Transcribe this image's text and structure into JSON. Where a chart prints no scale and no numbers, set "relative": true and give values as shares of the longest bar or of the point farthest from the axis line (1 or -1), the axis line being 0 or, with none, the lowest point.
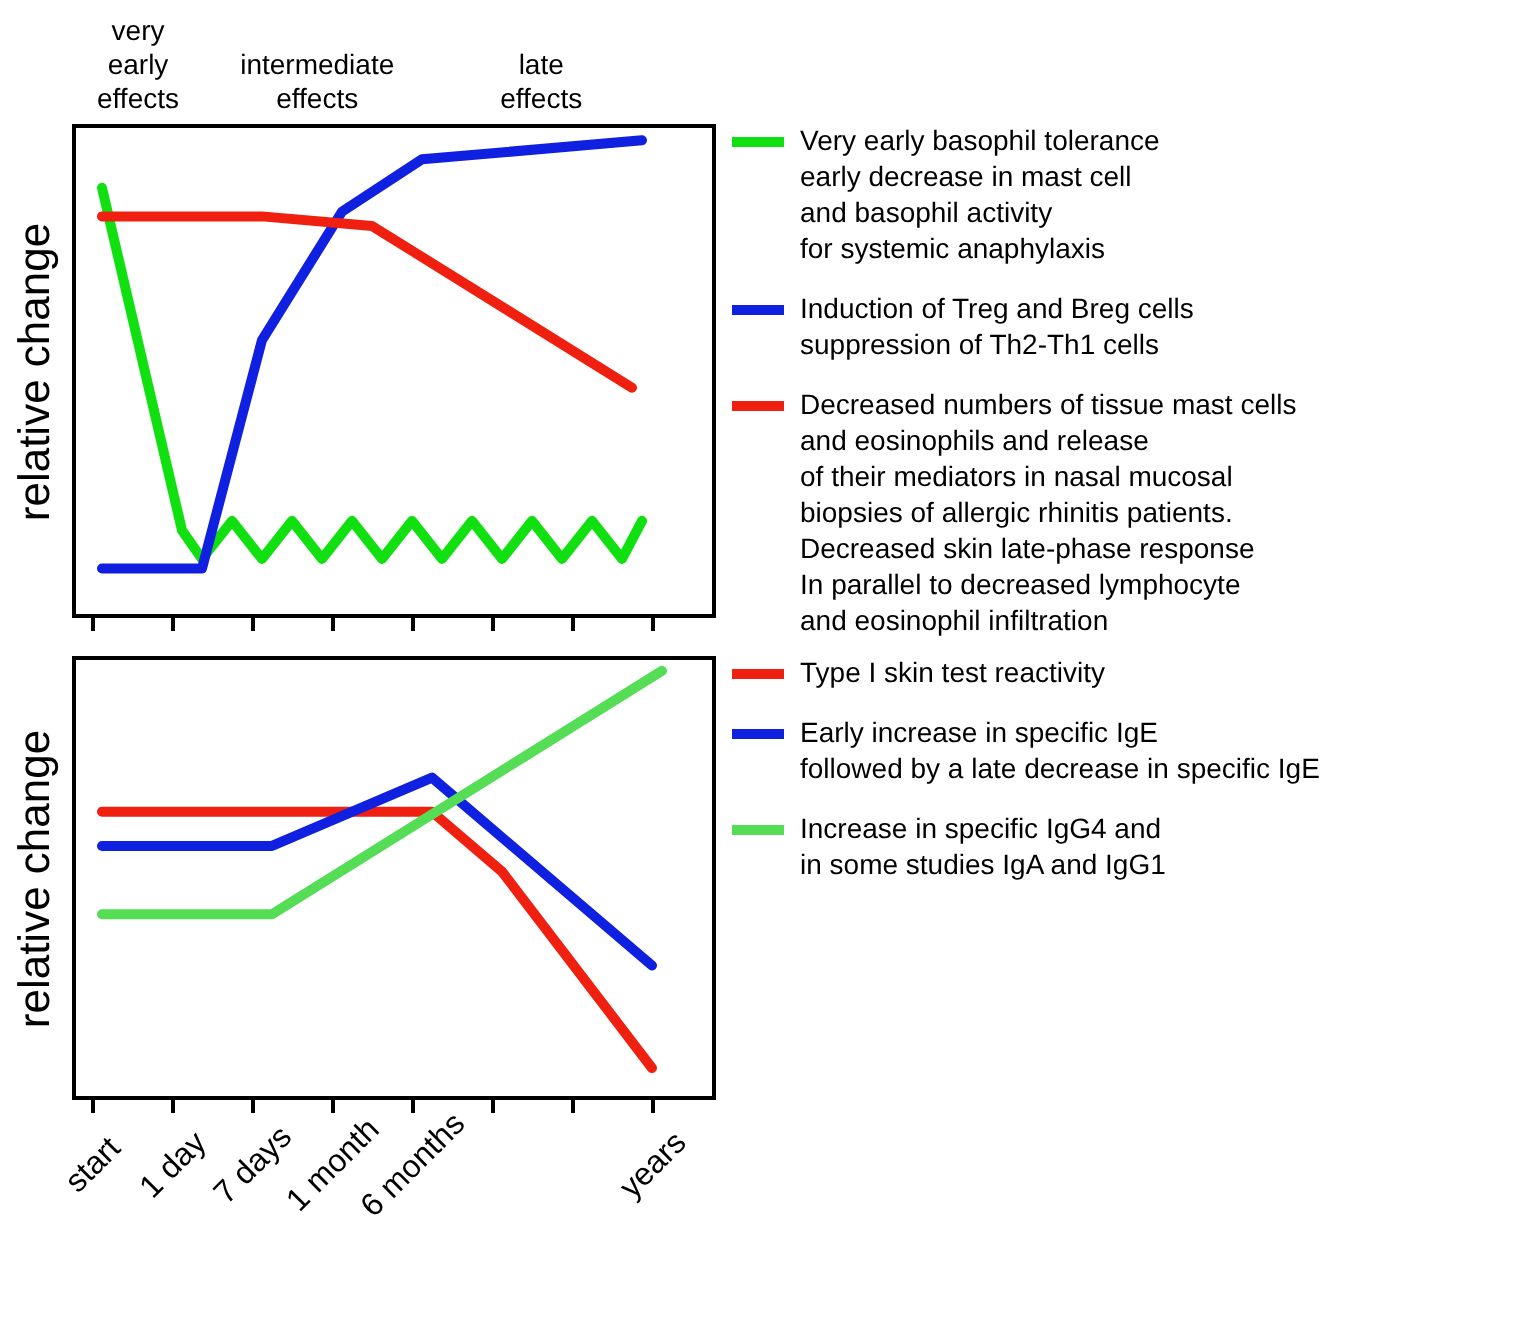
{
  "chart_data": [
    {
      "type": "line",
      "relative": true,
      "ylabel": "relative change",
      "legend": "right",
      "grid": false,
      "marker": "none",
      "line_style": "solid",
      "tick_labels": false,
      "categories": [
        null,
        null,
        null,
        null,
        null,
        null,
        null,
        null,
        null,
        null,
        null,
        null,
        null,
        null,
        null,
        null,
        null,
        null,
        null,
        null,
        null,
        null,
        null,
        null,
        null,
        null,
        null,
        null,
        null,
        null,
        null,
        null,
        null,
        null,
        null,
        null,
        null,
        null,
        null,
        null,
        null,
        null,
        null,
        null,
        null,
        null,
        null,
        null,
        null,
        null,
        null,
        null,
        null,
        null,
        null,
        null,
        null,
        null
      ],
      "annotations": [
        "very\nearly\neffects",
        "intermediate\neffects",
        "late\neffects"
      ],
      "series": [
        {
          "name": "Very early basophil tolerance\nearly decrease in mast cell\nand basophil activity\nfor systemic anaphylaxis",
          "color": "#10e010",
          "values": [
            null,
            0.9,
            null,
            null,
            null,
            null,
            null,
            null,
            null,
            0.18,
            null,
            0.12,
            null,
            null,
            0.2,
            null,
            null,
            0.12,
            null,
            null,
            0.2,
            null,
            null,
            0.12,
            null,
            null,
            0.2,
            null,
            null,
            0.12,
            null,
            null,
            0.2,
            null,
            null,
            0.12,
            null,
            null,
            0.2,
            null,
            null,
            0.12,
            null,
            null,
            0.2,
            null,
            null,
            0.12,
            null,
            null,
            0.2,
            null,
            null,
            0.12,
            null,
            0.2,
            null,
            null
          ]
        },
        {
          "name": "Induction of Treg  and Breg cells\nsuppression of Th2-Th1 cells",
          "color": "#1020e0",
          "values": [
            null,
            0.1,
            null,
            null,
            null,
            null,
            null,
            null,
            null,
            null,
            null,
            0.1,
            null,
            null,
            null,
            null,
            null,
            0.58,
            null,
            null,
            null,
            null,
            null,
            null,
            null,
            0.85,
            null,
            null,
            null,
            null,
            null,
            null,
            null,
            0.96,
            null,
            null,
            null,
            null,
            null,
            null,
            null,
            null,
            null,
            null,
            null,
            null,
            null,
            null,
            null,
            null,
            null,
            null,
            null,
            null,
            null,
            1,
            null,
            null
          ]
        },
        {
          "name": "Decreased numbers of tissue mast cells\nand eosinophils and release\nof their mediators in nasal mucosal\nbiopsies of allergic rhinitis patients.\nDecreased skin late-phase response\nIn parallel to decreased lymphocyte\nand eosinophil infiltration",
          "color": "#f02010",
          "values": [
            null,
            0.84,
            null,
            null,
            null,
            null,
            null,
            null,
            null,
            null,
            null,
            null,
            null,
            null,
            null,
            null,
            null,
            0.84,
            null,
            null,
            null,
            null,
            null,
            null,
            null,
            null,
            null,
            null,
            0.82,
            null,
            null,
            null,
            null,
            null,
            null,
            null,
            null,
            null,
            null,
            null,
            null,
            null,
            null,
            null,
            null,
            null,
            null,
            null,
            null,
            null,
            null,
            null,
            null,
            null,
            0.48,
            null,
            null,
            null
          ]
        }
      ]
    },
    {
      "type": "line",
      "relative": true,
      "ylabel": "relative change",
      "legend": "right",
      "grid": false,
      "marker": "none",
      "line_style": "solid",
      "tick_labels": "x",
      "categories": [
        "start",
        null,
        null,
        null,
        null,
        null,
        null,
        null,
        "1 day",
        null,
        null,
        null,
        null,
        null,
        null,
        null,
        "7 days",
        null,
        null,
        null,
        null,
        null,
        null,
        null,
        "1 month",
        null,
        null,
        null,
        null,
        null,
        null,
        null,
        "6 months",
        null,
        null,
        null,
        null,
        null,
        null,
        null,
        null,
        null,
        null,
        null,
        null,
        null,
        null,
        null,
        null,
        null,
        null,
        null,
        null,
        null,
        null,
        null,
        "years",
        null
      ],
      "series": [
        {
          "name": "Type I skin test reactivity",
          "color": "#f02010",
          "values": [
            null,
            0.67,
            null,
            null,
            null,
            null,
            null,
            null,
            null,
            null,
            null,
            null,
            null,
            null,
            null,
            null,
            null,
            null,
            null,
            null,
            null,
            null,
            null,
            null,
            null,
            null,
            null,
            null,
            null,
            null,
            null,
            null,
            null,
            null,
            0.67,
            null,
            null,
            null,
            null,
            null,
            null,
            0.53,
            null,
            null,
            null,
            null,
            null,
            null,
            null,
            null,
            null,
            null,
            null,
            null,
            null,
            null,
            0.07,
            null
          ]
        },
        {
          "name": "Early increase in specific IgE\nfollowed by a late decrease in specific IgE",
          "color": "#1020e0",
          "values": [
            null,
            0.59,
            null,
            null,
            null,
            null,
            null,
            null,
            null,
            null,
            null,
            null,
            null,
            null,
            null,
            null,
            null,
            null,
            0.59,
            null,
            null,
            null,
            null,
            null,
            null,
            null,
            null,
            null,
            null,
            null,
            null,
            null,
            null,
            null,
            0.75,
            null,
            null,
            null,
            null,
            null,
            null,
            null,
            null,
            null,
            null,
            null,
            null,
            null,
            null,
            null,
            null,
            null,
            null,
            null,
            null,
            null,
            0.31,
            null
          ]
        },
        {
          "name": "Increase in specific IgG4 and\nin some studies IgA and IgG1",
          "color": "#55dd55",
          "values": [
            null,
            0.43,
            null,
            null,
            null,
            null,
            null,
            null,
            null,
            null,
            null,
            null,
            null,
            null,
            null,
            null,
            null,
            null,
            0.43,
            null,
            null,
            null,
            null,
            null,
            null,
            null,
            null,
            null,
            null,
            null,
            null,
            null,
            null,
            null,
            null,
            null,
            null,
            null,
            null,
            null,
            null,
            null,
            null,
            null,
            null,
            null,
            null,
            null,
            null,
            null,
            null,
            null,
            null,
            null,
            null,
            null,
            null,
            1
          ]
        }
      ]
    }
  ]
}
